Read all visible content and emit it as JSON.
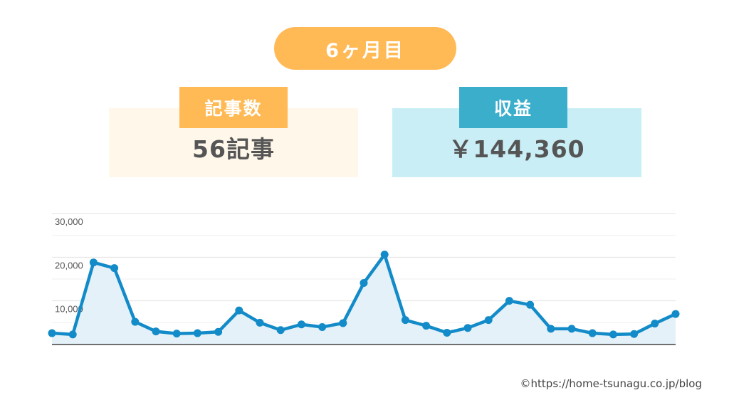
{
  "header": {
    "month_label": "6ヶ月目"
  },
  "stats": {
    "articles": {
      "label": "記事数",
      "value": "56記事"
    },
    "revenue": {
      "label": "収益",
      "value": "￥144,360"
    }
  },
  "colors": {
    "accent_orange": "#ffb955",
    "accent_blue": "#3aaecb",
    "line": "#138bc8",
    "area": "#e4f1f9"
  },
  "chart_data": {
    "type": "area",
    "grid": true,
    "ylim": [
      0,
      30000
    ],
    "yticks": [
      {
        "value": 10000,
        "label": "10,000"
      },
      {
        "value": 20000,
        "label": "20,000"
      },
      {
        "value": 30000,
        "label": "30,000"
      }
    ],
    "series": [
      {
        "values": [
          2600,
          2300,
          18800,
          17500,
          5200,
          3000,
          2500,
          2600,
          2900,
          7800,
          5000,
          3300,
          4600,
          4000,
          4900,
          14100,
          20600,
          5600,
          4300,
          2700,
          3800,
          5600,
          10000,
          9100,
          3600,
          3600,
          2600,
          2300,
          2400,
          4800,
          7000
        ]
      }
    ]
  },
  "footer": {
    "credit": "©https://home-tsunagu.co.jp/blog"
  }
}
